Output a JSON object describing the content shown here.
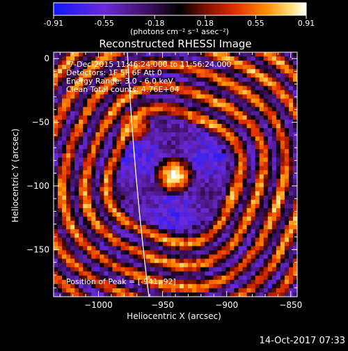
{
  "colorbar": {
    "ticks": [
      "-0.91",
      "-0.55",
      "-0.18",
      "0.18",
      "0.55",
      "0.91"
    ],
    "unit_label": "(photons cm⁻² s⁻¹ asec⁻²)",
    "colors": [
      "#1018ff",
      "#6b2ad8",
      "#3a0f5a",
      "#000000",
      "#7a1000",
      "#e23000",
      "#ff8c00",
      "#ffe07a",
      "#ffffff"
    ]
  },
  "chart_data": {
    "type": "heatmap",
    "title": "Reconstructed RHESSI Image",
    "xlabel": "Heliocentric X (arcsec)",
    "ylabel": "Heliocentric Y (arcsec)",
    "xlim": [
      -1035,
      -845
    ],
    "ylim": [
      -187,
      5
    ],
    "xticks": [
      -1000,
      -950,
      -900,
      -850
    ],
    "xtick_labels": [
      "−1000",
      "−950",
      "−900",
      "−850"
    ],
    "yticks": [
      0,
      -50,
      -100,
      -150
    ],
    "ytick_labels": [
      "0",
      "−50",
      "−100",
      "−150"
    ],
    "peak": {
      "x": -941,
      "y": -92
    },
    "secondary_source": {
      "x": -972,
      "y": -52
    },
    "annotations": [
      "7-Dec-2015 11:46:24.000 to 11:56:24.000",
      "Detectors: 1F 5F 6F Att 0",
      "Energy Range: 3.0 - 6.0 keV",
      "Clean    Total counts: 4.76E+04"
    ],
    "peak_label": "Position of Peak = [-941,-92]",
    "limb": true
  },
  "footer": {
    "timestamp": "14-Oct-2017 07:33"
  }
}
